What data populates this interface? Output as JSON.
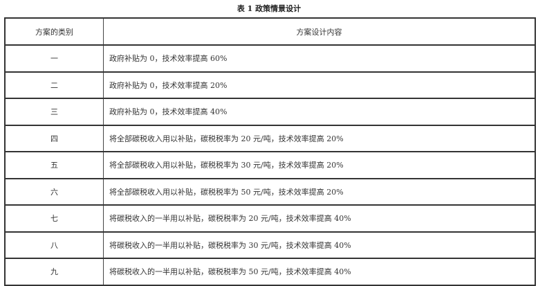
{
  "caption": "表 1  政策情景设计",
  "table": {
    "headers": [
      "方案的类别",
      "方案设计内容"
    ],
    "rows": [
      [
        "一",
        "政府补贴为 0，技术效率提高 60%"
      ],
      [
        "二",
        "政府补贴为 0，技术效率提高 20%"
      ],
      [
        "三",
        "政府补贴为 0，技术效率提高 40%"
      ],
      [
        "四",
        "将全部碳税收入用以补贴，碳税税率为 20 元/吨，技术效率提高 20%"
      ],
      [
        "五",
        "将全部碳税收入用以补贴，碳税税率为 30 元/吨，技术效率提高 20%"
      ],
      [
        "六",
        "将全部碳税收入用以补贴，碳税税率为 50 元/吨，技术效率提高 20%"
      ],
      [
        "七",
        "将碳税收入的一半用以补贴，碳税税率为 20 元/吨，技术效率提高 40%"
      ],
      [
        "八",
        "将碳税收入的一半用以补贴，碳税税率为 30 元/吨，技术效率提高 40%"
      ],
      [
        "九",
        "将碳税收入的一半用以补贴，碳税税率为 50 元/吨，技术效率提高 40%"
      ]
    ]
  }
}
